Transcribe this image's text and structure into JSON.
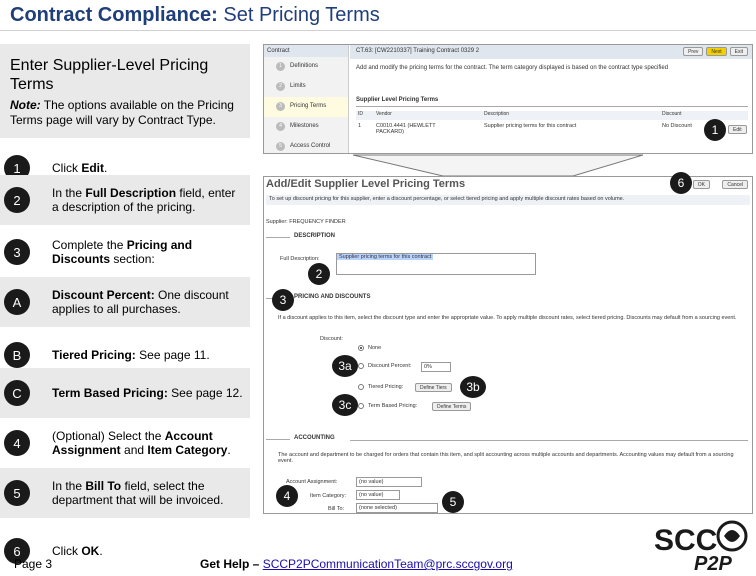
{
  "title": {
    "bold": "Contract Compliance:",
    "rest": "Set Pricing Terms"
  },
  "left_header": {
    "heading": "Enter Supplier-Level Pricing Terms",
    "note_label": "Note:",
    "note_text": "The options available on the Pricing Terms page will vary by Contract Type."
  },
  "steps": [
    {
      "num": "1",
      "parts": [
        "Click ",
        "Edit",
        "."
      ]
    },
    {
      "num": "2",
      "parts": [
        "In the ",
        "Full Description",
        " field, enter a description of the pricing."
      ]
    },
    {
      "num": "3",
      "parts": [
        "Complete the ",
        "Pricing and Discounts",
        " section:"
      ]
    },
    {
      "num": "A",
      "parts": [
        "",
        "Discount Percent:",
        " One discount applies to all purchases."
      ]
    },
    {
      "num": "B",
      "parts": [
        "",
        "Tiered Pricing:",
        " See page 11."
      ]
    },
    {
      "num": "C",
      "parts": [
        "",
        "Term Based Pricing:",
        " See page 12."
      ]
    },
    {
      "num": "4",
      "parts": [
        "(Optional) Select the ",
        "Account Assignment",
        " and ",
        "Item Category",
        "."
      ]
    },
    {
      "num": "5",
      "parts": [
        "In the ",
        "Bill To",
        " field, select the department that will be invoiced."
      ]
    },
    {
      "num": "6",
      "parts": [
        "Click ",
        "OK",
        "."
      ]
    }
  ],
  "footer": {
    "page": "Page 3",
    "help_label": "Get Help –",
    "help_email": "SCCP2PCommunicationTeam@prc.sccgov.org"
  },
  "logo": {
    "top": "SCC",
    "bottom": "P2P"
  },
  "screenshot1": {
    "sidebar_title": "Contract",
    "sidebar_items": [
      {
        "n": "1",
        "label": "Definitions"
      },
      {
        "n": "2",
        "label": "Limits"
      },
      {
        "n": "3",
        "label": "Pricing Terms"
      },
      {
        "n": "4",
        "label": "Milestones"
      },
      {
        "n": "5",
        "label": "Access Control"
      }
    ],
    "contract_title": "CT.63: [CW2210337] Training Contract 0329 2",
    "prev_label": "Prev",
    "next_label": "Next",
    "exit_label": "Exit",
    "description": "Add and modify the pricing terms for the contract. The term category displayed is based on the contract type specified",
    "section_title": "Supplier Level Pricing Terms",
    "columns": [
      "ID",
      "Vendor",
      "Description",
      "Discount"
    ],
    "row": {
      "id": "1",
      "vendor": "C0010.4441 (HEWLETT PACKARD)",
      "description": "Supplier pricing terms for this contract",
      "discount": "No Discount",
      "edit_label": "Edit"
    }
  },
  "screenshot2": {
    "title": "Add/Edit Supplier Level Pricing Terms",
    "ok_label": "OK",
    "cancel_label": "Cancel",
    "instruction": "To set up discount pricing for this supplier, enter a discount percentage, or select tiered pricing and apply multiple discount rates based on volume.",
    "supplier": "Supplier: FREQUENCY FINDER",
    "description_header": "DESCRIPTION",
    "full_description_label": "Full Description:",
    "full_description_value": "Supplier pricing terms for this contract",
    "pricing_header": "PRICING AND DISCOUNTS",
    "pricing_text": "If a discount applies to this item, select the discount type and enter the appropriate value. To apply multiple discount rates, select tiered pricing. Discounts may default from a sourcing event.",
    "discount_label": "Discount:",
    "options": [
      "None",
      "Discount Percent:",
      "Tiered Pricing:",
      "Term Based Pricing:"
    ],
    "percent_value": "0%",
    "define_tiers": "Define Tiers",
    "define_terms": "Define Terms",
    "accounting_header": "ACCOUNTING",
    "accounting_text": "The account and department to be charged for orders that contain this item, and split accounting across multiple accounts and departments. Accounting values may default from a sourcing event.",
    "account_assignment_label": "Account Assignment:",
    "item_category_label": "Item Category:",
    "bill_to_label": "Bill To:",
    "no_value": "(no value)",
    "none_selected": "(none selected)"
  },
  "callouts": [
    "1",
    "6",
    "2",
    "3",
    "3a",
    "3b",
    "3c",
    "4",
    "5"
  ],
  "colors": {
    "title": "#1f3e7a",
    "shade": "#e9e9e9",
    "badge": "#1a1a1a"
  }
}
